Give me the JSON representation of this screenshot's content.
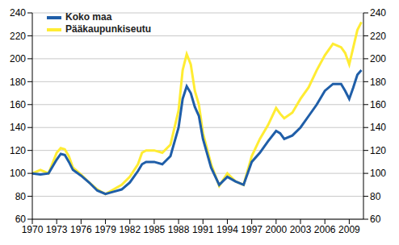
{
  "chart_data": {
    "type": "line",
    "x": [
      1970,
      1971,
      1972,
      1973,
      1973.5,
      1974,
      1974.5,
      1975,
      1976,
      1977,
      1978,
      1979,
      1980,
      1981,
      1982,
      1983,
      1983.5,
      1984,
      1985,
      1986,
      1987,
      1988,
      1988.5,
      1989,
      1989.5,
      1990,
      1990.5,
      1991,
      1992,
      1993,
      1994,
      1995,
      1996,
      1997,
      1998,
      1999,
      2000,
      2000.5,
      2001,
      2002,
      2003,
      2004,
      2005,
      2006,
      2007,
      2008,
      2008.5,
      2009,
      2009.5,
      2010,
      2010.5
    ],
    "series": [
      {
        "name": "Koko maa",
        "color": "#1f5ea8",
        "values": [
          100,
          99,
          100,
          112,
          117,
          116,
          110,
          103,
          98,
          92,
          85,
          82,
          84,
          86,
          92,
          102,
          108,
          110,
          110,
          108,
          115,
          140,
          165,
          176,
          170,
          158,
          150,
          130,
          105,
          90,
          97,
          93,
          90,
          110,
          118,
          128,
          137,
          135,
          130,
          133,
          140,
          150,
          160,
          172,
          178,
          178,
          172,
          165,
          175,
          186,
          190
        ]
      },
      {
        "name": "Pääkaupunkiseutu",
        "color": "#ffec33",
        "values": [
          100,
          103,
          100,
          118,
          122,
          121,
          115,
          105,
          99,
          92,
          86,
          82,
          86,
          90,
          97,
          108,
          118,
          120,
          120,
          118,
          125,
          155,
          190,
          204,
          195,
          172,
          160,
          135,
          108,
          89,
          100,
          93,
          90,
          115,
          130,
          142,
          157,
          152,
          148,
          153,
          165,
          175,
          190,
          203,
          213,
          210,
          205,
          195,
          210,
          225,
          232
        ]
      }
    ],
    "xlim": [
      1970,
      2010.75
    ],
    "xticks": [
      1970,
      1973,
      1976,
      1979,
      1982,
      1985,
      1988,
      1991,
      1994,
      1997,
      2000,
      2003,
      2006,
      2009
    ],
    "ylim": [
      60,
      240
    ],
    "yticks": [
      60,
      80,
      100,
      120,
      140,
      160,
      180,
      200,
      220,
      240
    ],
    "grid": true,
    "legend": "top-left"
  }
}
